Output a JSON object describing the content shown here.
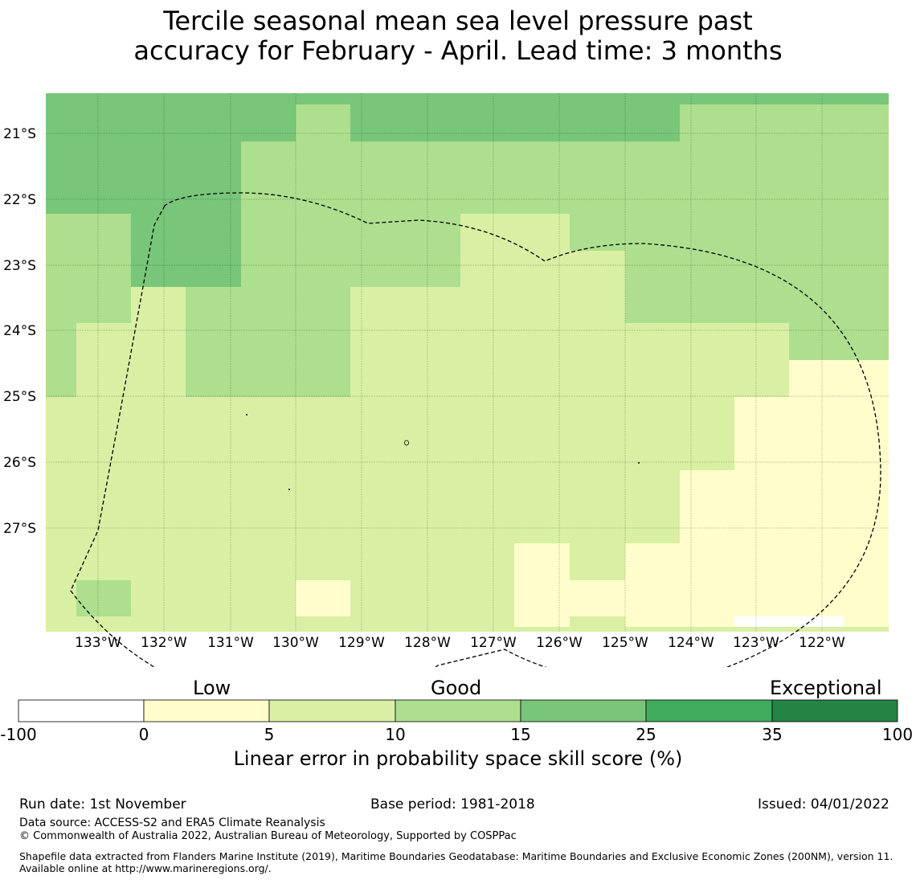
{
  "title": {
    "line1": "Tercile seasonal mean sea level pressure past",
    "line2": "accuracy for February - April. Lead time: 3 months"
  },
  "map": {
    "lat_labels": [
      "21°S",
      "22°S",
      "23°S",
      "24°S",
      "25°S",
      "26°S",
      "27°S"
    ],
    "lon_labels": [
      "133°W",
      "132°W",
      "131°W",
      "130°W",
      "129°W",
      "128°W",
      "127°W",
      "126°W",
      "125°W",
      "124°W",
      "123°W",
      "122°W"
    ],
    "boundary_style": "dashed",
    "gridlines": true
  },
  "colorbar": {
    "categories": [
      "Low",
      "Good",
      "Exceptional"
    ],
    "ticks": [
      "-100",
      "0",
      "5",
      "10",
      "15",
      "25",
      "35",
      "100"
    ],
    "colors": [
      "#ffffff",
      "#fffdcc",
      "#d9efa3",
      "#addf8e",
      "#78c679",
      "#41ab5d",
      "#238443"
    ],
    "title": "Linear error in probability space skill score (%)"
  },
  "footer": {
    "run_date": "Run date: 1st November",
    "base_period": "Base period: 1981-2018",
    "issued": "Issued: 04/01/2022",
    "data_source": "Data source: ACCESS-S2 and ERA5 Climate Reanalysis",
    "copyright": "© Commonwealth of Australia 2022, Australian Bureau of Meteorology, Supported by COSPPac",
    "shapefile": "Shapefile data extracted from Flanders Marine Institute (2019), Maritime Boundaries Geodatabase: Maritime Boundaries and Exclusive Economic Zones (200NM), version 11. Available online at http://www.marineregions.org/."
  }
}
